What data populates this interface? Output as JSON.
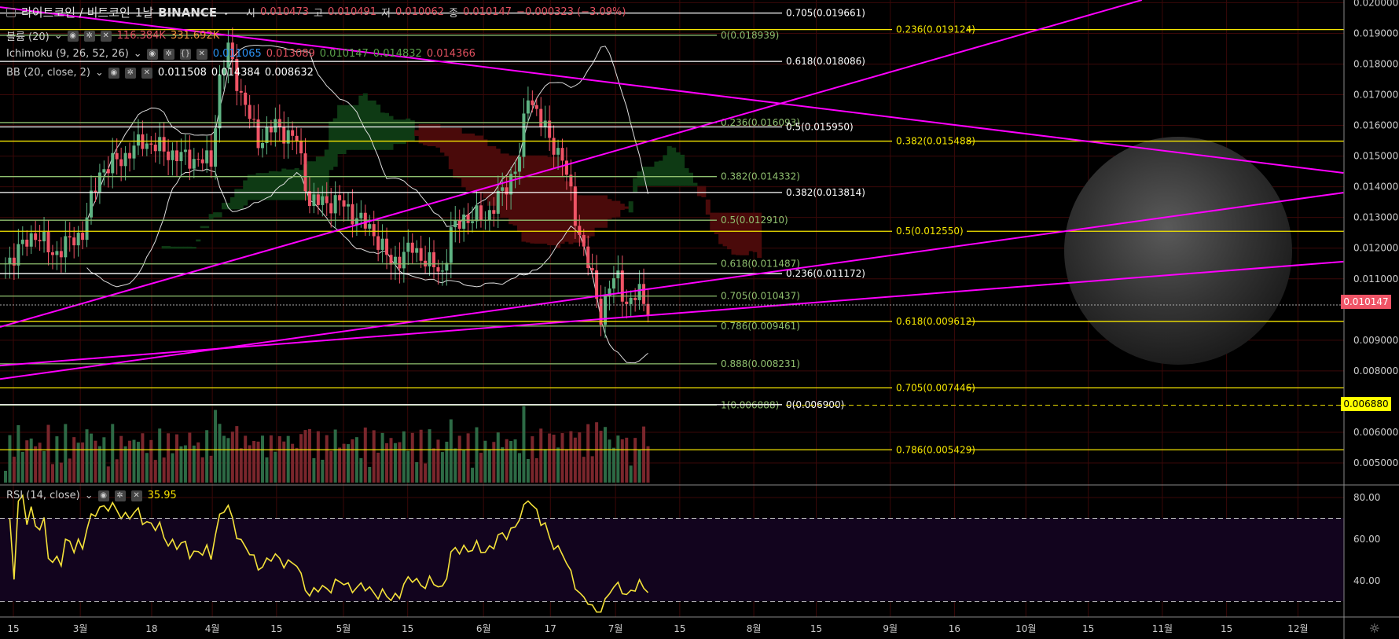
{
  "header": {
    "symbol": "라이트코인 / 비트코인",
    "interval": "1날",
    "exchange": "BINANCE",
    "ohlc": {
      "o_label": "시",
      "o": "0.010473",
      "h_label": "고",
      "h": "0.010491",
      "l_label": "저",
      "l": "0.010062",
      "c_label": "종",
      "c": "0.010147",
      "change": "−0.000323 (−3.09%)"
    }
  },
  "indicators": {
    "volume": {
      "label": "볼륨 (20)",
      "v1": "116.384K",
      "v2": "331.692K"
    },
    "ichimoku": {
      "label": "Ichimoku (9, 26, 52, 26)",
      "v1": "0.011065",
      "v2": "0.013089",
      "v3": "0.010147",
      "v4": "0.014832",
      "v5": "0.014366"
    },
    "bb": {
      "label": "BB (20, close, 2)",
      "v1": "0.011508",
      "v2": "0.014384",
      "v3": "0.008632"
    },
    "rsi": {
      "label": "RSI (14, close)",
      "value": "35.95"
    }
  },
  "colors": {
    "up": "#5fb383",
    "down": "#ef5466",
    "trend": "#ff00ff",
    "fib_white": "#ffffff",
    "fib_green": "#8fbf6f",
    "fib_yellow": "#f5e600",
    "rsi": "#f5e23a",
    "last_price_bg": "#ef5466",
    "alert_bg": "#ffff00"
  },
  "chart_data": {
    "type": "candlestick",
    "price_axis": {
      "ticks": [
        "0.020000",
        "0.019000",
        "0.018000",
        "0.017000",
        "0.016000",
        "0.015000",
        "0.014000",
        "0.013000",
        "0.012000",
        "0.011000",
        "0.009000",
        "0.008000",
        "0.006000",
        "0.005000"
      ],
      "range": [
        0.0045,
        0.0201
      ]
    },
    "rsi_axis": {
      "ticks": [
        "80.00",
        "60.00",
        "40.00"
      ],
      "bands": [
        30,
        70
      ]
    },
    "time_axis": [
      "15",
      "3월",
      "18",
      "4월",
      "15",
      "5월",
      "15",
      "6월",
      "17",
      "7월",
      "15",
      "8월",
      "15",
      "9월",
      "16",
      "10월",
      "15",
      "11월",
      "15",
      "12월"
    ],
    "last_price": "0.010147",
    "alert_price": "0.006880",
    "close_path": [
      [
        0,
        0.0115
      ],
      [
        7,
        0.0125
      ],
      [
        11,
        0.0118
      ],
      [
        18,
        0.0125
      ],
      [
        22,
        0.0145
      ],
      [
        28,
        0.015
      ],
      [
        32,
        0.0155
      ],
      [
        40,
        0.015
      ],
      [
        48,
        0.0148
      ],
      [
        50,
        0.0175
      ],
      [
        52,
        0.0185
      ],
      [
        55,
        0.017
      ],
      [
        59,
        0.0155
      ],
      [
        63,
        0.016
      ],
      [
        68,
        0.0155
      ],
      [
        71,
        0.0135
      ],
      [
        74,
        0.0135
      ],
      [
        78,
        0.0135
      ],
      [
        82,
        0.013
      ],
      [
        86,
        0.0125
      ],
      [
        90,
        0.0115
      ],
      [
        95,
        0.012
      ],
      [
        99,
        0.0115
      ],
      [
        102,
        0.0112
      ],
      [
        104,
        0.0125
      ],
      [
        107,
        0.013
      ],
      [
        112,
        0.013
      ],
      [
        117,
        0.014
      ],
      [
        120,
        0.015
      ],
      [
        122,
        0.017
      ],
      [
        124,
        0.0165
      ],
      [
        127,
        0.0155
      ],
      [
        130,
        0.015
      ],
      [
        133,
        0.013
      ],
      [
        136,
        0.0115
      ],
      [
        139,
        0.0098
      ],
      [
        141,
        0.0108
      ],
      [
        143,
        0.011
      ],
      [
        145,
        0.0102
      ],
      [
        148,
        0.0105
      ],
      [
        150,
        0.0101
      ]
    ],
    "fib_white": [
      {
        "label": "0.705(0.019661)",
        "price": 0.019661
      },
      {
        "label": "0.618(0.018086)",
        "price": 0.018086
      },
      {
        "label": "0.5(0.015950)",
        "price": 0.01595
      },
      {
        "label": "0.382(0.013814)",
        "price": 0.013814
      },
      {
        "label": "0.236(0.011172)",
        "price": 0.011172
      },
      {
        "label": "0(0.006900)",
        "price": 0.0069
      }
    ],
    "fib_green": [
      {
        "label": "0(0.018939)",
        "price": 0.018939
      },
      {
        "label": "0.236(0.016093)",
        "price": 0.016093
      },
      {
        "label": "0.382(0.014332)",
        "price": 0.014332
      },
      {
        "label": "0.5(0.012910)",
        "price": 0.01291
      },
      {
        "label": "0.618(0.011487)",
        "price": 0.011487
      },
      {
        "label": "0.705(0.010437)",
        "price": 0.010437
      },
      {
        "label": "0.786(0.009461)",
        "price": 0.009461
      },
      {
        "label": "0.888(0.008231)",
        "price": 0.008231
      },
      {
        "label": "1(0.006888)",
        "price": 0.006888
      }
    ],
    "fib_yellow": [
      {
        "label": "0.236(0.019124)",
        "price": 0.019124
      },
      {
        "label": "0.382(0.015488)",
        "price": 0.015488
      },
      {
        "label": "0.5(0.012550)",
        "price": 0.01255
      },
      {
        "label": "0.618(0.009612)",
        "price": 0.009612
      },
      {
        "label": "0.705(0.007446)",
        "price": 0.007446
      },
      {
        "label": "0.786(0.005429)",
        "price": 0.005429
      }
    ]
  }
}
